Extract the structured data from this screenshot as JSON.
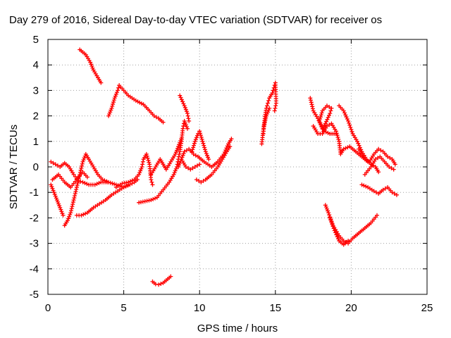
{
  "chart_data": {
    "type": "scatter",
    "title": "Day 279 of 2016, Sidereal Day-to-day VTEC variation (SDTVAR) for receiver os",
    "xlabel": "GPS time / hours",
    "ylabel": "SDTVAR / TECUs",
    "xlim": [
      0,
      25
    ],
    "ylim": [
      -5,
      5
    ],
    "x_ticks": [
      0,
      5,
      10,
      15,
      20,
      25
    ],
    "y_ticks": [
      -5,
      -4,
      -3,
      -2,
      -1,
      0,
      1,
      2,
      3,
      4,
      5
    ],
    "grid": true,
    "legend": "none",
    "marker": "+",
    "series_color": "#ff0000",
    "series": [
      {
        "tracks": [
          [
            [
              2.1,
              4.6
            ],
            [
              2.5,
              4.4
            ],
            [
              2.8,
              4.1
            ],
            [
              3.0,
              3.8
            ],
            [
              3.3,
              3.5
            ],
            [
              3.5,
              3.3
            ]
          ],
          [
            [
              4.0,
              2.0
            ],
            [
              4.2,
              2.3
            ],
            [
              4.4,
              2.7
            ],
            [
              4.6,
              3.0
            ],
            [
              4.7,
              3.2
            ],
            [
              5.0,
              3.0
            ],
            [
              5.3,
              2.8
            ],
            [
              5.8,
              2.6
            ],
            [
              6.3,
              2.45
            ],
            [
              6.7,
              2.2
            ],
            [
              7.0,
              2.0
            ],
            [
              7.3,
              1.9
            ],
            [
              7.5,
              1.8
            ],
            [
              7.6,
              1.75
            ]
          ],
          [
            [
              6.9,
              -4.5
            ],
            [
              7.1,
              -4.6
            ],
            [
              7.3,
              -4.62
            ],
            [
              7.6,
              -4.55
            ],
            [
              7.9,
              -4.4
            ],
            [
              8.1,
              -4.3
            ]
          ],
          [
            [
              0.2,
              -0.7
            ],
            [
              0.4,
              -1.0
            ],
            [
              0.6,
              -1.3
            ],
            [
              0.8,
              -1.6
            ],
            [
              1.0,
              -1.9
            ]
          ],
          [
            [
              1.1,
              -2.3
            ],
            [
              1.3,
              -2.1
            ],
            [
              1.5,
              -1.8
            ],
            [
              1.7,
              -1.3
            ],
            [
              1.9,
              -0.8
            ],
            [
              2.1,
              -0.3
            ],
            [
              2.3,
              0.2
            ],
            [
              2.5,
              0.5
            ],
            [
              2.7,
              0.3
            ],
            [
              3.0,
              0.0
            ],
            [
              3.3,
              -0.3
            ],
            [
              3.6,
              -0.5
            ],
            [
              4.0,
              -0.6
            ],
            [
              4.5,
              -0.7
            ],
            [
              5.0,
              -0.8
            ],
            [
              5.3,
              -0.7
            ]
          ],
          [
            [
              0.2,
              0.2
            ],
            [
              0.5,
              0.1
            ],
            [
              0.8,
              0.0
            ],
            [
              1.1,
              0.15
            ],
            [
              1.4,
              0.0
            ],
            [
              1.7,
              -0.3
            ],
            [
              2.0,
              -0.55
            ],
            [
              2.3,
              -0.6
            ],
            [
              2.7,
              -0.7
            ],
            [
              3.1,
              -0.7
            ],
            [
              3.5,
              -0.6
            ],
            [
              3.9,
              -0.6
            ]
          ],
          [
            [
              0.3,
              -0.5
            ],
            [
              0.7,
              -0.3
            ],
            [
              1.1,
              -0.6
            ],
            [
              1.5,
              -0.8
            ],
            [
              1.9,
              -0.5
            ],
            [
              2.3,
              -0.2
            ],
            [
              2.6,
              -0.4
            ]
          ],
          [
            [
              1.9,
              -1.9
            ],
            [
              2.2,
              -1.9
            ],
            [
              2.6,
              -1.8
            ],
            [
              3.0,
              -1.6
            ],
            [
              3.4,
              -1.45
            ],
            [
              3.8,
              -1.3
            ],
            [
              4.2,
              -1.1
            ],
            [
              4.6,
              -0.95
            ],
            [
              5.0,
              -0.8
            ],
            [
              5.4,
              -0.7
            ],
            [
              5.7,
              -0.6
            ],
            [
              5.9,
              -0.5
            ]
          ],
          [
            [
              4.5,
              -0.8
            ],
            [
              4.9,
              -0.65
            ],
            [
              5.3,
              -0.6
            ],
            [
              5.7,
              -0.5
            ],
            [
              6.0,
              -0.3
            ],
            [
              6.2,
              0.0
            ],
            [
              6.3,
              0.3
            ],
            [
              6.5,
              0.5
            ],
            [
              6.7,
              0.1
            ],
            [
              6.8,
              -0.5
            ],
            [
              6.9,
              -0.7
            ]
          ],
          [
            [
              6.0,
              -1.4
            ],
            [
              6.4,
              -1.35
            ],
            [
              6.8,
              -1.3
            ],
            [
              7.2,
              -1.2
            ],
            [
              7.6,
              -0.9
            ],
            [
              8.0,
              -0.6
            ],
            [
              8.3,
              -0.3
            ],
            [
              8.5,
              0.0
            ],
            [
              8.6,
              0.3
            ],
            [
              8.7,
              0.6
            ],
            [
              8.8,
              1.0
            ],
            [
              8.9,
              1.5
            ],
            [
              9.0,
              1.8
            ],
            [
              9.2,
              1.5
            ]
          ],
          [
            [
              6.8,
              -0.3
            ],
            [
              7.1,
              0.0
            ],
            [
              7.4,
              0.3
            ],
            [
              7.6,
              0.1
            ],
            [
              7.8,
              -0.1
            ],
            [
              8.1,
              0.2
            ],
            [
              8.4,
              0.5
            ],
            [
              8.6,
              0.8
            ],
            [
              8.8,
              1.1
            ]
          ],
          [
            [
              8.6,
              0.0
            ],
            [
              8.8,
              0.3
            ],
            [
              9.0,
              0.6
            ],
            [
              9.3,
              0.7
            ],
            [
              9.6,
              0.5
            ],
            [
              9.9,
              0.4
            ],
            [
              10.3,
              0.2
            ],
            [
              10.8,
              0.0
            ],
            [
              11.2,
              0.2
            ],
            [
              11.6,
              0.5
            ],
            [
              11.9,
              0.9
            ],
            [
              12.1,
              1.1
            ]
          ],
          [
            [
              8.7,
              2.8
            ],
            [
              9.0,
              2.4
            ],
            [
              9.2,
              2.1
            ],
            [
              9.3,
              1.8
            ]
          ],
          [
            [
              9.5,
              0.6
            ],
            [
              9.7,
              1.0
            ],
            [
              9.9,
              1.3
            ],
            [
              10.0,
              1.4
            ],
            [
              10.2,
              1.0
            ],
            [
              10.4,
              0.6
            ],
            [
              10.6,
              0.3
            ]
          ],
          [
            [
              9.8,
              -0.5
            ],
            [
              10.1,
              -0.6
            ],
            [
              10.4,
              -0.5
            ],
            [
              10.8,
              -0.3
            ],
            [
              11.2,
              0.0
            ],
            [
              11.5,
              0.3
            ],
            [
              11.8,
              0.6
            ],
            [
              12.0,
              0.8
            ]
          ],
          [
            [
              8.8,
              0.3
            ],
            [
              9.1,
              0.0
            ],
            [
              9.4,
              -0.1
            ],
            [
              9.7,
              0.0
            ],
            [
              10.0,
              0.1
            ]
          ],
          [
            [
              14.1,
              0.9
            ],
            [
              14.2,
              1.4
            ],
            [
              14.3,
              1.9
            ],
            [
              14.4,
              2.3
            ],
            [
              14.5,
              2.5
            ],
            [
              14.6,
              2.7
            ],
            [
              14.8,
              2.9
            ],
            [
              14.9,
              3.1
            ],
            [
              15.0,
              3.3
            ],
            [
              15.05,
              2.5
            ],
            [
              14.95,
              2.2
            ]
          ],
          [
            [
              14.2,
              1.3
            ],
            [
              14.25,
              1.6
            ],
            [
              14.4,
              2.0
            ],
            [
              14.6,
              2.3
            ]
          ],
          [
            [
              17.3,
              2.7
            ],
            [
              17.5,
              2.2
            ],
            [
              17.8,
              1.9
            ],
            [
              18.1,
              1.5
            ],
            [
              18.3,
              1.7
            ],
            [
              18.6,
              2.1
            ],
            [
              18.7,
              2.3
            ],
            [
              18.4,
              2.4
            ],
            [
              18.1,
              2.2
            ],
            [
              17.9,
              1.8
            ],
            [
              18.2,
              1.4
            ],
            [
              18.6,
              1.3
            ],
            [
              19.0,
              1.3
            ]
          ],
          [
            [
              17.5,
              1.6
            ],
            [
              17.8,
              1.3
            ],
            [
              18.1,
              1.3
            ],
            [
              18.4,
              1.6
            ],
            [
              18.7,
              1.7
            ],
            [
              19.0,
              1.4
            ],
            [
              19.2,
              1.0
            ],
            [
              19.3,
              0.5
            ],
            [
              19.5,
              0.7
            ],
            [
              19.9,
              0.8
            ],
            [
              20.3,
              0.6
            ],
            [
              20.7,
              0.4
            ],
            [
              21.1,
              0.2
            ]
          ],
          [
            [
              19.2,
              2.4
            ],
            [
              19.5,
              2.2
            ],
            [
              19.8,
              1.8
            ],
            [
              20.1,
              1.3
            ],
            [
              20.4,
              1.0
            ],
            [
              20.7,
              0.6
            ],
            [
              21.0,
              0.3
            ],
            [
              21.3,
              0.1
            ],
            [
              21.6,
              0.0
            ],
            [
              21.8,
              -0.2
            ]
          ],
          [
            [
              20.5,
              0.7
            ],
            [
              20.9,
              0.3
            ],
            [
              21.2,
              0.2
            ],
            [
              21.5,
              0.5
            ],
            [
              21.8,
              0.7
            ],
            [
              22.1,
              0.6
            ],
            [
              22.4,
              0.4
            ],
            [
              22.7,
              0.3
            ],
            [
              22.9,
              0.1
            ]
          ],
          [
            [
              20.9,
              -0.3
            ],
            [
              21.3,
              0.0
            ],
            [
              21.6,
              0.3
            ],
            [
              21.9,
              0.4
            ],
            [
              22.2,
              0.2
            ],
            [
              22.5,
              0.0
            ],
            [
              22.8,
              -0.1
            ]
          ],
          [
            [
              20.7,
              -0.7
            ],
            [
              21.1,
              -0.8
            ],
            [
              21.5,
              -0.95
            ],
            [
              21.8,
              -1.05
            ],
            [
              22.1,
              -0.9
            ],
            [
              22.4,
              -0.8
            ],
            [
              22.7,
              -1.0
            ],
            [
              23.0,
              -1.1
            ]
          ],
          [
            [
              18.3,
              -1.5
            ],
            [
              18.5,
              -1.8
            ],
            [
              18.8,
              -2.3
            ],
            [
              19.2,
              -2.7
            ],
            [
              19.5,
              -2.9
            ],
            [
              19.8,
              -3.0
            ],
            [
              20.1,
              -2.8
            ],
            [
              20.5,
              -2.6
            ],
            [
              20.9,
              -2.4
            ],
            [
              21.3,
              -2.2
            ],
            [
              21.7,
              -1.9
            ]
          ],
          [
            [
              18.6,
              -2.0
            ],
            [
              18.9,
              -2.5
            ],
            [
              19.2,
              -2.9
            ],
            [
              19.5,
              -3.05
            ],
            [
              19.8,
              -2.9
            ]
          ]
        ]
      }
    ]
  }
}
